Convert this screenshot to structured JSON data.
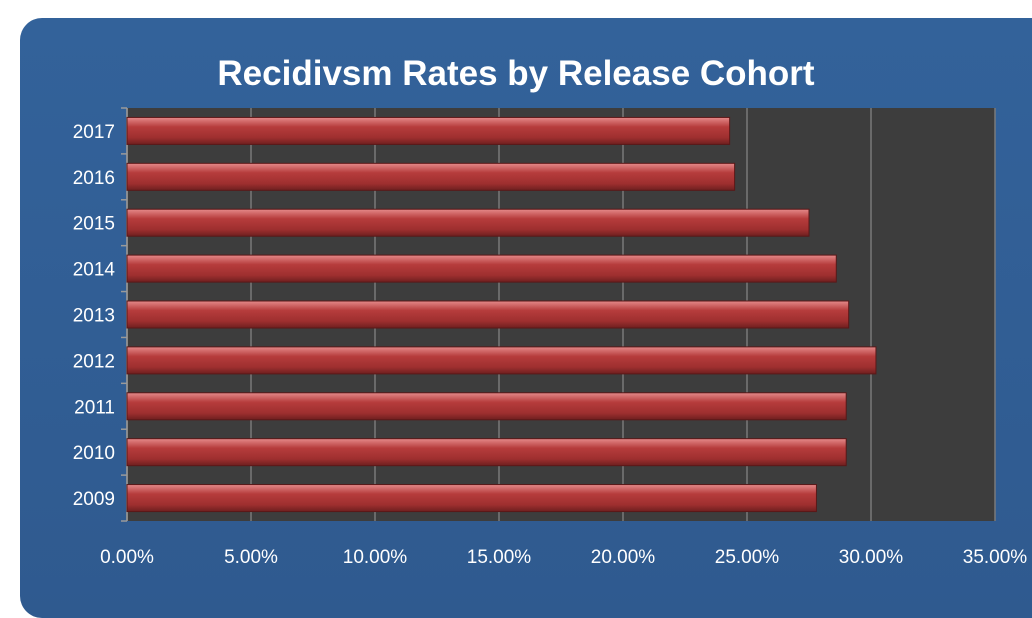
{
  "chart_data": {
    "type": "bar",
    "orientation": "horizontal",
    "title": "Recidivsm Rates by Release Cohort",
    "categories": [
      "2017",
      "2016",
      "2015",
      "2014",
      "2013",
      "2012",
      "2011",
      "2010",
      "2009"
    ],
    "values": [
      24.3,
      24.5,
      27.5,
      28.6,
      29.1,
      30.2,
      29.0,
      29.0,
      27.8
    ],
    "value_format": "percent",
    "xlim": [
      0,
      35
    ],
    "xticks": [
      "0.00%",
      "5.00%",
      "10.00%",
      "15.00%",
      "20.00%",
      "25.00%",
      "30.00%",
      "35.00%"
    ],
    "xtick_values": [
      0,
      5,
      10,
      15,
      20,
      25,
      30,
      35
    ],
    "grid": true,
    "colors": {
      "panel": "#33629a",
      "plot_area": "#3d3d3d",
      "bar": "#b03a3a",
      "bar_highlight": "#e07a7a",
      "gridline": "#7a7a7a"
    }
  }
}
